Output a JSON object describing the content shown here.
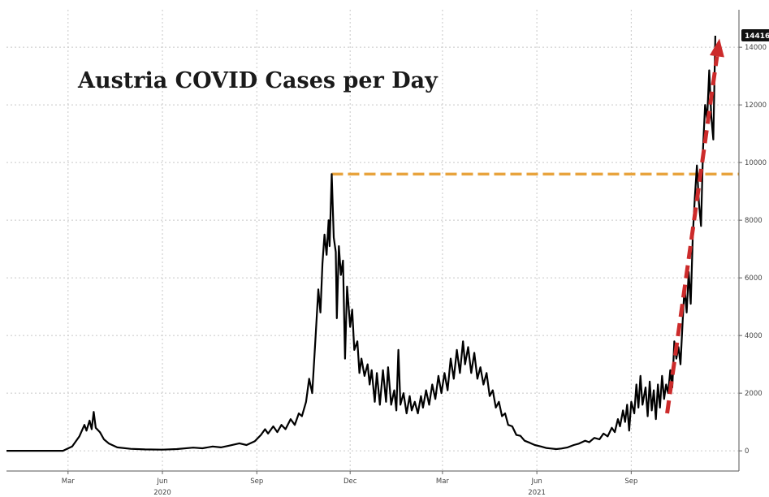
{
  "chart_data": {
    "type": "line",
    "title": "Austria COVID Cases per Day",
    "xlabel": "",
    "ylabel": "",
    "x_tick_labels": [
      "Mar",
      "Jun",
      "Sep",
      "Dec",
      "Mar",
      "Jun",
      "Sep"
    ],
    "x_tick_dates": [
      "2020-03-01",
      "2020-06-01",
      "2020-09-01",
      "2020-12-01",
      "2021-03-01",
      "2021-06-01",
      "2021-09-01"
    ],
    "year_labels": [
      {
        "label": "2020",
        "date": "2020-06-01"
      },
      {
        "label": "2021",
        "date": "2021-06-01"
      }
    ],
    "y_ticks": [
      0,
      2000,
      4000,
      6000,
      8000,
      10000,
      12000,
      14000
    ],
    "y_tick_labels": [
      "0",
      "2000",
      "4000",
      "6000",
      "8000",
      "10000",
      "12000",
      "14000"
    ],
    "ylim": [
      -700,
      15300
    ],
    "xlim": [
      "2020-01-01",
      "2021-12-15"
    ],
    "grid": true,
    "last_value_label": "14416",
    "reference_line": {
      "value": 9600,
      "from": "2020-11-13",
      "color": "#e8a33c",
      "style": "dashed"
    },
    "trend_arrow": {
      "from": {
        "date": "2021-10-06",
        "value": 1300
      },
      "to": {
        "date": "2021-11-26",
        "value": 14300
      },
      "color": "#cc2b2b",
      "style": "dashed"
    },
    "series": [
      {
        "color": "#000000",
        "points": [
          [
            "2020-01-01",
            0
          ],
          [
            "2020-02-25",
            0
          ],
          [
            "2020-03-05",
            150
          ],
          [
            "2020-03-12",
            500
          ],
          [
            "2020-03-17",
            900
          ],
          [
            "2020-03-19",
            700
          ],
          [
            "2020-03-22",
            1050
          ],
          [
            "2020-03-24",
            750
          ],
          [
            "2020-03-26",
            1350
          ],
          [
            "2020-03-28",
            800
          ],
          [
            "2020-04-01",
            650
          ],
          [
            "2020-04-05",
            400
          ],
          [
            "2020-04-10",
            250
          ],
          [
            "2020-04-18",
            120
          ],
          [
            "2020-05-01",
            70
          ],
          [
            "2020-05-15",
            50
          ],
          [
            "2020-06-01",
            40
          ],
          [
            "2020-06-15",
            60
          ],
          [
            "2020-07-01",
            110
          ],
          [
            "2020-07-10",
            90
          ],
          [
            "2020-07-20",
            150
          ],
          [
            "2020-07-28",
            120
          ],
          [
            "2020-08-05",
            180
          ],
          [
            "2020-08-15",
            260
          ],
          [
            "2020-08-22",
            200
          ],
          [
            "2020-08-30",
            330
          ],
          [
            "2020-09-05",
            550
          ],
          [
            "2020-09-09",
            750
          ],
          [
            "2020-09-12",
            600
          ],
          [
            "2020-09-17",
            850
          ],
          [
            "2020-09-21",
            650
          ],
          [
            "2020-09-25",
            900
          ],
          [
            "2020-09-29",
            750
          ],
          [
            "2020-10-04",
            1100
          ],
          [
            "2020-10-08",
            900
          ],
          [
            "2020-10-12",
            1300
          ],
          [
            "2020-10-15",
            1200
          ],
          [
            "2020-10-19",
            1700
          ],
          [
            "2020-10-22",
            2500
          ],
          [
            "2020-10-25",
            2000
          ],
          [
            "2020-10-28",
            3800
          ],
          [
            "2020-10-31",
            5600
          ],
          [
            "2020-11-02",
            4800
          ],
          [
            "2020-11-04",
            6500
          ],
          [
            "2020-11-06",
            7500
          ],
          [
            "2020-11-08",
            6800
          ],
          [
            "2020-11-10",
            8000
          ],
          [
            "2020-11-11",
            7100
          ],
          [
            "2020-11-13",
            9600
          ],
          [
            "2020-11-15",
            7400
          ],
          [
            "2020-11-17",
            6900
          ],
          [
            "2020-11-18",
            4600
          ],
          [
            "2020-11-20",
            7100
          ],
          [
            "2020-11-22",
            6100
          ],
          [
            "2020-11-24",
            6600
          ],
          [
            "2020-11-26",
            3200
          ],
          [
            "2020-11-28",
            5700
          ],
          [
            "2020-12-01",
            4300
          ],
          [
            "2020-12-03",
            4900
          ],
          [
            "2020-12-05",
            3500
          ],
          [
            "2020-12-08",
            3800
          ],
          [
            "2020-12-10",
            2700
          ],
          [
            "2020-12-12",
            3200
          ],
          [
            "2020-12-15",
            2600
          ],
          [
            "2020-12-18",
            3000
          ],
          [
            "2020-12-20",
            2300
          ],
          [
            "2020-12-22",
            2800
          ],
          [
            "2020-12-25",
            1700
          ],
          [
            "2020-12-27",
            2700
          ],
          [
            "2020-12-30",
            1600
          ],
          [
            "2021-01-02",
            2800
          ],
          [
            "2021-01-05",
            1700
          ],
          [
            "2021-01-07",
            2900
          ],
          [
            "2021-01-10",
            1600
          ],
          [
            "2021-01-13",
            2100
          ],
          [
            "2021-01-15",
            1400
          ],
          [
            "2021-01-17",
            3500
          ],
          [
            "2021-01-19",
            1600
          ],
          [
            "2021-01-22",
            2000
          ],
          [
            "2021-01-25",
            1300
          ],
          [
            "2021-01-28",
            1900
          ],
          [
            "2021-01-30",
            1400
          ],
          [
            "2021-02-02",
            1700
          ],
          [
            "2021-02-05",
            1300
          ],
          [
            "2021-02-08",
            1900
          ],
          [
            "2021-02-10",
            1500
          ],
          [
            "2021-02-13",
            2100
          ],
          [
            "2021-02-16",
            1600
          ],
          [
            "2021-02-19",
            2300
          ],
          [
            "2021-02-22",
            1800
          ],
          [
            "2021-02-25",
            2600
          ],
          [
            "2021-02-28",
            2000
          ],
          [
            "2021-03-03",
            2700
          ],
          [
            "2021-03-06",
            2100
          ],
          [
            "2021-03-09",
            3200
          ],
          [
            "2021-03-12",
            2500
          ],
          [
            "2021-03-15",
            3500
          ],
          [
            "2021-03-18",
            2700
          ],
          [
            "2021-03-21",
            3800
          ],
          [
            "2021-03-23",
            3000
          ],
          [
            "2021-03-26",
            3600
          ],
          [
            "2021-03-29",
            2700
          ],
          [
            "2021-04-01",
            3400
          ],
          [
            "2021-04-04",
            2500
          ],
          [
            "2021-04-07",
            2900
          ],
          [
            "2021-04-10",
            2300
          ],
          [
            "2021-04-13",
            2700
          ],
          [
            "2021-04-16",
            1900
          ],
          [
            "2021-04-19",
            2100
          ],
          [
            "2021-04-22",
            1500
          ],
          [
            "2021-04-25",
            1700
          ],
          [
            "2021-04-28",
            1200
          ],
          [
            "2021-05-01",
            1300
          ],
          [
            "2021-05-04",
            900
          ],
          [
            "2021-05-08",
            850
          ],
          [
            "2021-05-12",
            550
          ],
          [
            "2021-05-16",
            520
          ],
          [
            "2021-05-20",
            350
          ],
          [
            "2021-05-25",
            280
          ],
          [
            "2021-05-30",
            200
          ],
          [
            "2021-06-05",
            150
          ],
          [
            "2021-06-10",
            100
          ],
          [
            "2021-06-15",
            80
          ],
          [
            "2021-06-20",
            60
          ],
          [
            "2021-06-25",
            80
          ],
          [
            "2021-07-01",
            120
          ],
          [
            "2021-07-07",
            200
          ],
          [
            "2021-07-12",
            250
          ],
          [
            "2021-07-18",
            350
          ],
          [
            "2021-07-22",
            300
          ],
          [
            "2021-07-27",
            450
          ],
          [
            "2021-08-01",
            400
          ],
          [
            "2021-08-05",
            600
          ],
          [
            "2021-08-09",
            500
          ],
          [
            "2021-08-13",
            800
          ],
          [
            "2021-08-16",
            650
          ],
          [
            "2021-08-19",
            1100
          ],
          [
            "2021-08-21",
            850
          ],
          [
            "2021-08-24",
            1400
          ],
          [
            "2021-08-26",
            1000
          ],
          [
            "2021-08-28",
            1600
          ],
          [
            "2021-08-30",
            700
          ],
          [
            "2021-09-01",
            1700
          ],
          [
            "2021-09-04",
            1300
          ],
          [
            "2021-09-06",
            2300
          ],
          [
            "2021-09-08",
            1500
          ],
          [
            "2021-09-10",
            2600
          ],
          [
            "2021-09-12",
            1600
          ],
          [
            "2021-09-15",
            2200
          ],
          [
            "2021-09-17",
            1200
          ],
          [
            "2021-09-19",
            2400
          ],
          [
            "2021-09-21",
            1400
          ],
          [
            "2021-09-23",
            2100
          ],
          [
            "2021-09-25",
            1100
          ],
          [
            "2021-09-27",
            2300
          ],
          [
            "2021-09-29",
            1500
          ],
          [
            "2021-10-01",
            2600
          ],
          [
            "2021-10-03",
            1800
          ],
          [
            "2021-10-05",
            2300
          ],
          [
            "2021-10-07",
            2000
          ],
          [
            "2021-10-09",
            2800
          ],
          [
            "2021-10-11",
            2200
          ],
          [
            "2021-10-13",
            3800
          ],
          [
            "2021-10-15",
            3200
          ],
          [
            "2021-10-17",
            3600
          ],
          [
            "2021-10-19",
            3000
          ],
          [
            "2021-10-21",
            4400
          ],
          [
            "2021-10-23",
            5700
          ],
          [
            "2021-10-25",
            4800
          ],
          [
            "2021-10-27",
            6200
          ],
          [
            "2021-10-29",
            5100
          ],
          [
            "2021-10-31",
            7500
          ],
          [
            "2021-11-02",
            8800
          ],
          [
            "2021-11-04",
            9900
          ],
          [
            "2021-11-06",
            8600
          ],
          [
            "2021-11-08",
            7800
          ],
          [
            "2021-11-10",
            10500
          ],
          [
            "2021-11-12",
            12000
          ],
          [
            "2021-11-14",
            11500
          ],
          [
            "2021-11-16",
            13200
          ],
          [
            "2021-11-18",
            11600
          ],
          [
            "2021-11-20",
            10800
          ],
          [
            "2021-11-22",
            14400
          ]
        ]
      }
    ]
  }
}
